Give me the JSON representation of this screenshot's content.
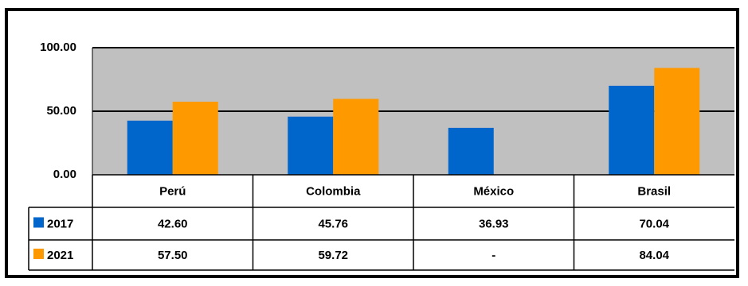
{
  "chart_data": {
    "type": "bar",
    "categories": [
      "Perú",
      "Colombia",
      "México",
      "Brasil"
    ],
    "series": [
      {
        "name": "2017",
        "values": [
          42.6,
          45.76,
          36.93,
          70.04
        ],
        "labels": [
          "42.60",
          "45.76",
          "36.93",
          "70.04"
        ],
        "color": "#0066CC"
      },
      {
        "name": "2021",
        "values": [
          57.5,
          59.72,
          null,
          84.04
        ],
        "labels": [
          "57.50",
          "59.72",
          "-",
          "84.04"
        ],
        "color": "#FF9900"
      }
    ],
    "ylim": [
      0,
      100
    ],
    "yticks": [
      0,
      50,
      100
    ],
    "ytick_labels": [
      "0.00",
      "50.00",
      "100.00"
    ],
    "title": "",
    "xlabel": "",
    "ylabel": "",
    "grid": true,
    "legend": "data-table",
    "plot_background": "#C0C0C0"
  }
}
